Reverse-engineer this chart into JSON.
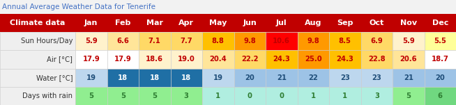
{
  "title": "Annual Average Weather Data for Tenerife",
  "title_color": "#4472C4",
  "header_bg": "#C00000",
  "months": [
    "Jan",
    "Feb",
    "Mar",
    "Apr",
    "May",
    "Jun",
    "Jul",
    "Aug",
    "Sep",
    "Oct",
    "Nov",
    "Dec"
  ],
  "rows": [
    {
      "label": "Sun Hours/Day",
      "values": [
        "5.9",
        "6.6",
        "7.1",
        "7.7",
        "8.8",
        "9.8",
        "10.6",
        "9.8",
        "8.5",
        "6.9",
        "5.9",
        "5.5"
      ],
      "cell_colors": [
        "#FFF2CC",
        "#FFE599",
        "#FFD966",
        "#FFD966",
        "#FFC000",
        "#FF9900",
        "#FF0000",
        "#FF9900",
        "#FFC000",
        "#FFD966",
        "#FFF2CC",
        "#FFFF99"
      ],
      "text_colors": [
        "#C00000",
        "#C00000",
        "#C00000",
        "#C00000",
        "#C00000",
        "#C00000",
        "#C00000",
        "#C00000",
        "#C00000",
        "#C00000",
        "#C00000",
        "#C00000"
      ]
    },
    {
      "label": "Air [°C]",
      "values": [
        "17.9",
        "17.9",
        "18.6",
        "19.0",
        "20.4",
        "22.2",
        "24.3",
        "25.0",
        "24.3",
        "22.8",
        "20.6",
        "18.7"
      ],
      "cell_colors": [
        "#FFFFFF",
        "#FFFFFF",
        "#FFF2CC",
        "#FFF2CC",
        "#FFE599",
        "#FFD966",
        "#FFC000",
        "#FF9900",
        "#FFC000",
        "#FFD966",
        "#FFE599",
        "#FFFFFF"
      ],
      "text_colors": [
        "#C00000",
        "#C00000",
        "#C00000",
        "#C00000",
        "#C00000",
        "#C00000",
        "#C00000",
        "#C00000",
        "#C00000",
        "#C00000",
        "#C00000",
        "#C00000"
      ]
    },
    {
      "label": "Water [°C]",
      "values": [
        "19",
        "18",
        "18",
        "18",
        "19",
        "20",
        "21",
        "22",
        "23",
        "23",
        "21",
        "20"
      ],
      "cell_colors": [
        "#BDD7EE",
        "#1F6FA5",
        "#1F6FA5",
        "#1F6FA5",
        "#BDD7EE",
        "#9DC3E6",
        "#9DC3E6",
        "#9DC3E6",
        "#BDD7EE",
        "#BDD7EE",
        "#9DC3E6",
        "#9DC3E6"
      ],
      "text_colors": [
        "#1F4E79",
        "#FFFFFF",
        "#FFFFFF",
        "#FFFFFF",
        "#1F4E79",
        "#1F4E79",
        "#1F4E79",
        "#1F4E79",
        "#1F4E79",
        "#1F4E79",
        "#1F4E79",
        "#1F4E79"
      ]
    },
    {
      "label": "Days with rain",
      "values": [
        "5",
        "5",
        "5",
        "3",
        "1",
        "0",
        "0",
        "1",
        "1",
        "3",
        "5",
        "6"
      ],
      "cell_colors": [
        "#90EE90",
        "#90EE90",
        "#90EE90",
        "#90EE90",
        "#B0EEE0",
        "#B0EEE0",
        "#B0EEE0",
        "#B0EEE0",
        "#B0EEE0",
        "#B0EEE0",
        "#90EE90",
        "#70D880"
      ],
      "text_colors": [
        "#2E7D32",
        "#2E7D32",
        "#2E7D32",
        "#2E7D32",
        "#2E7D32",
        "#2E7D32",
        "#2E7D32",
        "#2E7D32",
        "#2E7D32",
        "#2E7D32",
        "#2E7D32",
        "#2E7D32"
      ]
    }
  ],
  "fig_width": 6.54,
  "fig_height": 1.51,
  "dpi": 100
}
